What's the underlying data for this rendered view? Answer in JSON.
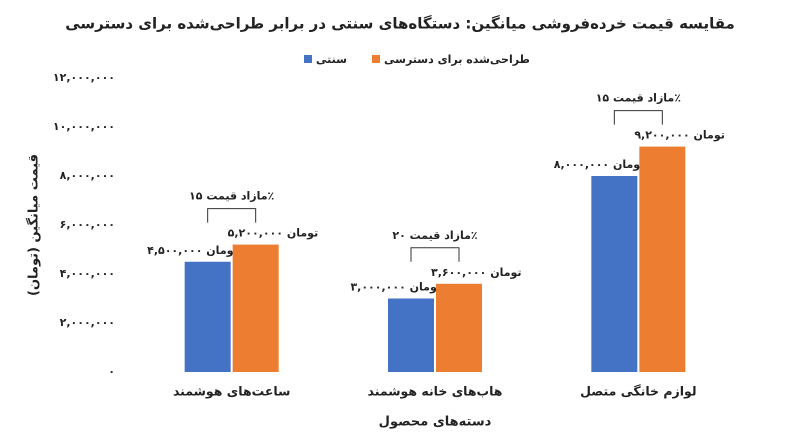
{
  "chart_data": {
    "type": "bar",
    "title": "مقایسه قیمت خرده‌فروشی میانگین: دستگاه‌های سنتی در برابر طراحی‌شده برای دسترسی",
    "x_label": "دسته‌های محصول",
    "y_label": "قیمت میانگین (تومان)",
    "categories": [
      "ساعت‌های هوشمند",
      "هاب‌های خانه هوشمند",
      "لوازم خانگی متصل"
    ],
    "series": [
      {
        "name": "سنتی",
        "color": "#4472c4",
        "values": [
          4500000,
          3000000,
          8000000
        ],
        "value_labels": [
          "۴,۵۰۰,۰۰۰ تومان",
          "۳,۰۰۰,۰۰۰ تومان",
          "۸,۰۰۰,۰۰۰ تومان"
        ]
      },
      {
        "name": "طراحی‌شده برای دسترسی",
        "color": "#ed7d31",
        "values": [
          5200000,
          3600000,
          9200000
        ],
        "value_labels": [
          "۵,۲۰۰,۰۰۰ تومان",
          "۳,۶۰۰,۰۰۰ تومان",
          "۹,۲۰۰,۰۰۰ تومان"
        ]
      }
    ],
    "annotations": [
      "مازاد قیمت ۱۵٪",
      "مازاد قیمت ۲۰٪",
      "مازاد قیمت ۱۵٪"
    ],
    "ylim": [
      0,
      12000000
    ],
    "yticks": [
      {
        "value": 0,
        "label": "۰"
      },
      {
        "value": 2000000,
        "label": "۲,۰۰۰,۰۰۰"
      },
      {
        "value": 4000000,
        "label": "۴,۰۰۰,۰۰۰"
      },
      {
        "value": 6000000,
        "label": "۶,۰۰۰,۰۰۰"
      },
      {
        "value": 8000000,
        "label": "۸,۰۰۰,۰۰۰"
      },
      {
        "value": 10000000,
        "label": "۱۰,۰۰۰,۰۰۰"
      },
      {
        "value": 12000000,
        "label": "۱۲,۰۰۰,۰۰۰"
      }
    ],
    "grid": false,
    "legend": "top"
  }
}
